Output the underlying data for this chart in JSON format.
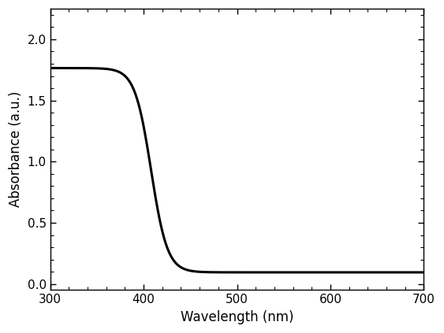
{
  "xlabel": "Wavelength (nm)",
  "ylabel": "Absorbance (a.u.)",
  "xlim": [
    300,
    700
  ],
  "ylim": [
    -0.05,
    2.25
  ],
  "yticks": [
    0.0,
    0.5,
    1.0,
    1.5,
    2.0
  ],
  "xticks": [
    300,
    400,
    500,
    600,
    700
  ],
  "line_color": "#000000",
  "line_width": 2.2,
  "background_color": "#ffffff",
  "curve_params": {
    "x_start": 300,
    "x_end": 700,
    "plateau_high": 1.765,
    "plateau_low": 0.095,
    "inflection": 408,
    "steepness": 0.115
  }
}
